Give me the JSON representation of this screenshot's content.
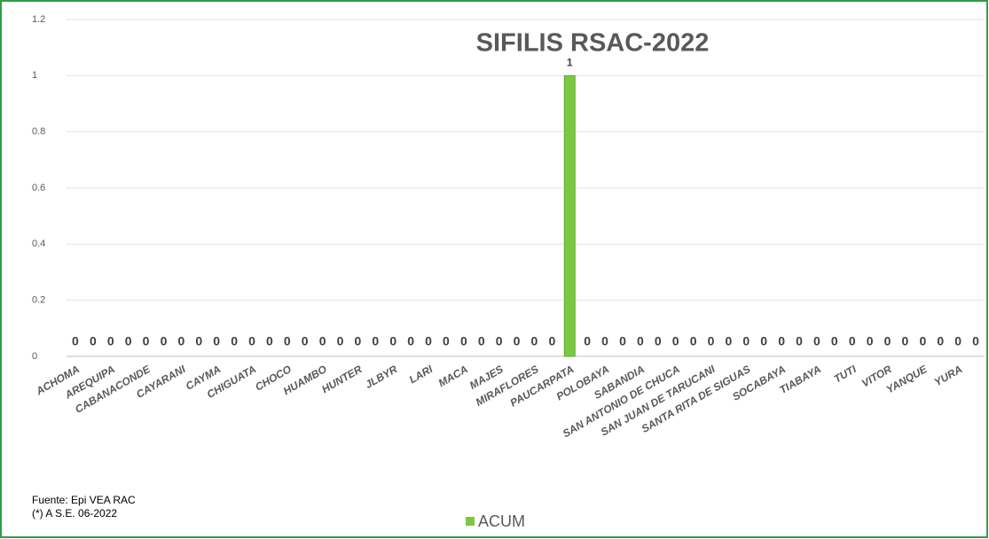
{
  "chart_data": {
    "type": "bar",
    "title": "SIFILIS RSAC-2022",
    "categories": [
      "ACHOMA",
      null,
      "AREQUIPA",
      null,
      "CABANACONDE",
      null,
      "CAYARANI",
      null,
      "CAYMA",
      null,
      "CHIGUATA",
      null,
      "CHOCO",
      null,
      "HUAMBO",
      null,
      "HUNTER",
      null,
      "JLBYR",
      null,
      "LARI",
      null,
      "MACA",
      null,
      "MAJES",
      null,
      "MIRAFLORES",
      null,
      "PAUCARPATA",
      null,
      "POLOBAYA",
      null,
      "SABANDIA",
      null,
      "SAN ANTONIO DE CHUCA",
      null,
      "SAN JUAN DE TARUCANI",
      null,
      "SANTA RITA DE SIGUAS",
      null,
      "SOCABAYA",
      null,
      "TIABAYA",
      null,
      "TUTI",
      null,
      "VITOR",
      null,
      "YANQUE",
      null,
      "YURA",
      null
    ],
    "series": [
      {
        "name": "ACUM",
        "color": "#7ac943",
        "values": [
          0,
          0,
          0,
          0,
          0,
          0,
          0,
          0,
          0,
          0,
          0,
          0,
          0,
          0,
          0,
          0,
          0,
          0,
          0,
          0,
          0,
          0,
          0,
          0,
          0,
          0,
          0,
          0,
          1,
          0,
          0,
          0,
          0,
          0,
          0,
          0,
          0,
          0,
          0,
          0,
          0,
          0,
          0,
          0,
          0,
          0,
          0,
          0,
          0,
          0,
          0,
          0
        ]
      }
    ],
    "ylim": [
      0,
      1.2
    ],
    "yticks": [
      0,
      0.2,
      0.4,
      0.6,
      0.8,
      1,
      1.2
    ],
    "grid": true,
    "notes": [
      "Fuente:  Epi VEA RAC",
      "(*) A S.E. 06-2022"
    ]
  }
}
